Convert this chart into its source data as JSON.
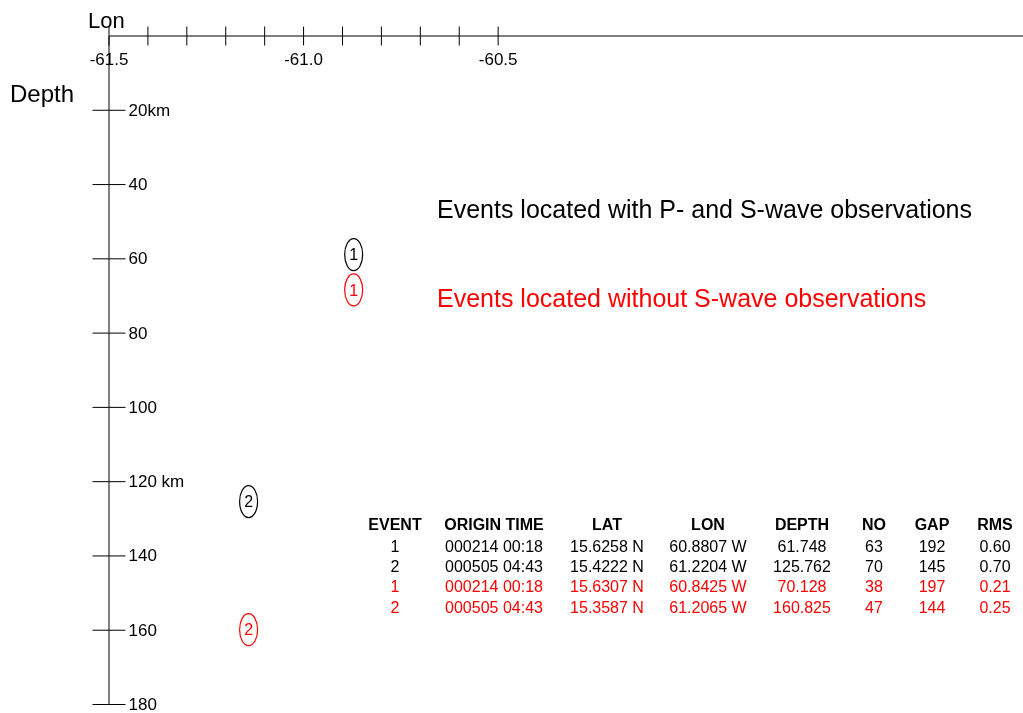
{
  "chart_data": {
    "type": "scatter",
    "xlabel": "Lon",
    "ylabel": "Depth",
    "xlim": [
      -61.5,
      -59.15
    ],
    "xticks": [
      -61.5,
      {
        "value": -61.4,
        "label": null
      },
      {
        "value": -61.3,
        "label": null
      },
      {
        "value": -61.2,
        "label": null
      },
      {
        "value": -61.1,
        "label": null
      },
      {
        "value": -61,
        "label": "-61.0"
      },
      {
        "value": -60.9,
        "label": null
      },
      {
        "value": -60.8,
        "label": null
      },
      {
        "value": -60.7,
        "label": null
      },
      {
        "value": -60.6,
        "label": null
      },
      -60.5
    ],
    "ylim": [
      180,
      0
    ],
    "yticks": [
      {
        "value": 20,
        "label": "20km"
      },
      40,
      60,
      80,
      100,
      {
        "value": 120,
        "label": "120 km"
      },
      140,
      160,
      180
    ],
    "marker": "circle",
    "x": [
      -60.87,
      -61.14
    ],
    "series": [
      {
        "name": "Events located with P- and S-wave observations",
        "color": "#000000",
        "values": [
          59,
          125.5
        ]
      },
      {
        "name": "Events located without S-wave observations",
        "color": "#ff0000",
        "values": [
          68.5,
          160
        ]
      }
    ],
    "annotations": [
      "1",
      "2",
      "1",
      "2",
      "EVENT",
      "ORIGIN TIME",
      "LAT",
      "LON",
      "DEPTH",
      "NO",
      "GAP",
      "RMS",
      "1",
      "000214 00:18",
      "15.6258 N",
      "60.8807 W",
      "61.748",
      "63",
      "192",
      "0.60",
      "2",
      "000505 04:43",
      "15.4222 N",
      "61.2204 W",
      "125.762",
      "70",
      "145",
      "0.70",
      "1",
      "000214 00:18",
      "15.6307 N",
      "60.8425 W",
      "70.128",
      "38",
      "197",
      "0.21",
      "2",
      "000505 04:43",
      "15.3587 N",
      "61.2065 W",
      "160.825",
      "47",
      "144",
      "0.25"
    ]
  }
}
